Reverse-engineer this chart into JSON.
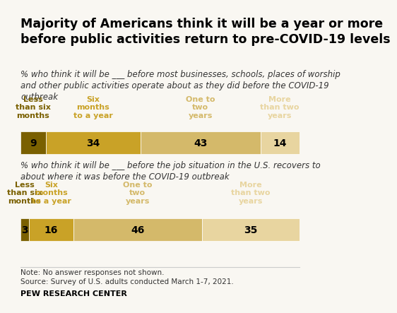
{
  "title": "Majority of Americans think it will be a year or more\nbefore public activities return to pre-COVID-19 levels",
  "subtitle1": "% who think it will be ___ before most businesses, schools, places of worship\nand other public activities operate about as they did before the COVID-19\noutbreak",
  "subtitle2": "% who think it will be ___ before the job situation in the U.S. recovers to\nabout where it was before the COVID-19 outbreak",
  "note": "Note: No answer responses not shown.\nSource: Survey of U.S. adults conducted March 1-7, 2021.",
  "footer": "PEW RESEARCH CENTER",
  "bar1": {
    "categories": [
      "Less\nthan six\nmonths",
      "Six\nmonths\nto a year",
      "One to\ntwo\nyears",
      "More\nthan two\nyears"
    ],
    "values": [
      9,
      34,
      43,
      14
    ],
    "colors": [
      "#7a6000",
      "#c9a227",
      "#d4b96a",
      "#e8d5a0"
    ]
  },
  "bar2": {
    "categories": [
      "Less\nthan six\nmonths",
      "Six\nmonths\nto a year",
      "One to\ntwo\nyears",
      "More\nthan two\nyears"
    ],
    "values": [
      3,
      16,
      46,
      35
    ],
    "colors": [
      "#7a6000",
      "#c9a227",
      "#d4b96a",
      "#e8d5a0"
    ]
  },
  "background_color": "#f9f7f2",
  "title_fontsize": 12.5,
  "subtitle_fontsize": 8.5,
  "label_fontsize": 8,
  "value_fontsize": 10,
  "cat_label_colors": [
    "#7a6000",
    "#c9a227",
    "#d4b96a",
    "#e8d5a0"
  ]
}
